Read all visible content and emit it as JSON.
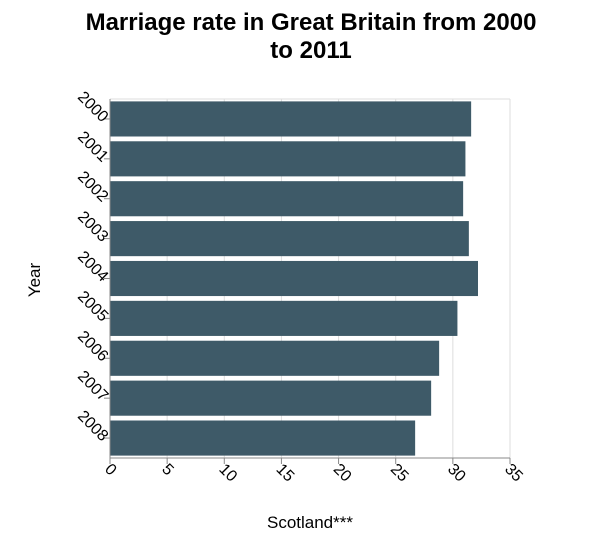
{
  "chart_data": {
    "type": "bar",
    "orientation": "horizontal",
    "title": "Marriage rate in Great Britain from 2000 to 2011",
    "title_lines": [
      "Marriage rate in Great Britain from 2000",
      "to 2011"
    ],
    "xlabel": "Scotland***",
    "ylabel": "Year",
    "categories": [
      "2000",
      "2001",
      "2002",
      "2003",
      "2004",
      "2005",
      "2006",
      "2007",
      "2008"
    ],
    "values": [
      31.6,
      31.1,
      30.9,
      31.4,
      32.2,
      30.4,
      28.8,
      28.1,
      26.7
    ],
    "xlim": [
      0,
      35
    ],
    "xticks": [
      0,
      5,
      10,
      15,
      20,
      25,
      30,
      35
    ],
    "grid": true,
    "legend": "none",
    "bar_color": "#3e5a68",
    "grid_color": "#dddddd",
    "axis_color": "#888888"
  }
}
